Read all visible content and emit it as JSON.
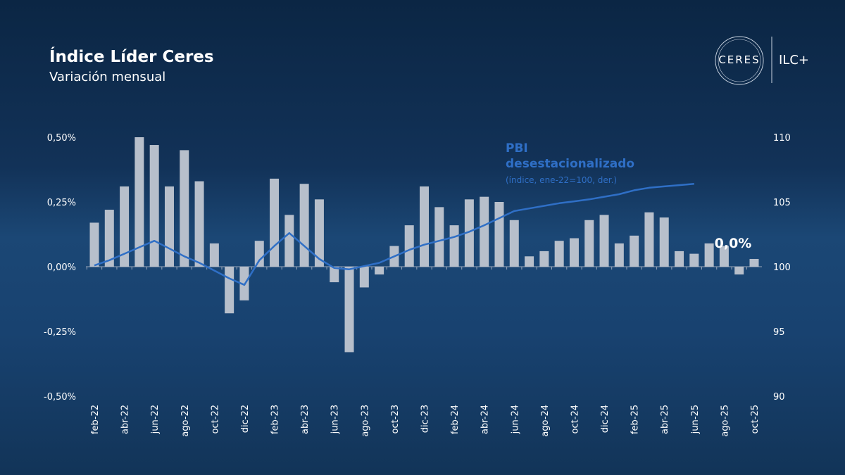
{
  "chart_data": {
    "type": "bar",
    "title": "Índice Líder Ceres",
    "subtitle": "Variación mensual",
    "logo": {
      "brand": "CERES",
      "product": "ILC+"
    },
    "categories": [
      "feb-22",
      null,
      "abr-22",
      null,
      "jun-22",
      null,
      "ago-22",
      null,
      "oct-22",
      null,
      "dic-22",
      null,
      "feb-23",
      null,
      "abr-23",
      null,
      "jun-23",
      null,
      "ago-23",
      null,
      "oct-23",
      null,
      "dic-23",
      null,
      "feb-24",
      null,
      "abr-24",
      null,
      "jun-24",
      null,
      "ago-24",
      null,
      "oct-24",
      null,
      "dic-24",
      null,
      "feb-25",
      null,
      "abr-25",
      null,
      "jun-25",
      null,
      "ago-25",
      null,
      "oct-25"
    ],
    "series": [
      {
        "name": "Índice Líder Ceres",
        "type": "bar",
        "axis": "y",
        "color": "#b7bfcb",
        "values": [
          0.17,
          0.22,
          0.31,
          0.5,
          0.47,
          0.31,
          0.45,
          0.33,
          0.09,
          -0.18,
          -0.13,
          0.1,
          0.34,
          0.2,
          0.32,
          0.26,
          -0.06,
          -0.33,
          -0.08,
          -0.03,
          0.08,
          0.16,
          0.31,
          0.23,
          0.16,
          0.26,
          0.27,
          0.25,
          0.18,
          0.04,
          0.06,
          0.1,
          0.11,
          0.18,
          0.2,
          0.09,
          0.12,
          0.21,
          0.19,
          0.06,
          0.05,
          0.09,
          0.08,
          -0.03,
          0.03
        ],
        "value_labels": [
          null,
          null,
          null,
          null,
          null,
          null,
          null,
          null,
          null,
          null,
          null,
          null,
          null,
          null,
          null,
          null,
          null,
          null,
          null,
          null,
          null,
          null,
          null,
          null,
          null,
          null,
          null,
          null,
          null,
          null,
          null,
          null,
          null,
          null,
          null,
          null,
          null,
          null,
          null,
          null,
          null,
          null,
          null,
          null,
          "0,0%"
        ]
      },
      {
        "name": "PBI desestacionalizado",
        "type": "line",
        "axis": "y2",
        "color": "#2f6fc6",
        "note": "(índice, ene-22=100, der.)",
        "values": [
          100.1,
          100.5,
          101.0,
          101.5,
          102.0,
          101.4,
          100.8,
          100.3,
          99.7,
          99.1,
          98.6,
          100.5,
          101.6,
          102.6,
          101.6,
          100.6,
          99.9,
          99.8,
          100.05,
          100.3,
          100.8,
          101.3,
          101.7,
          102.0,
          102.3,
          102.7,
          103.2,
          103.75,
          104.3,
          104.5,
          104.7,
          104.9,
          105.05,
          105.2,
          105.4,
          105.6,
          105.9,
          106.1,
          106.2,
          106.3,
          106.4,
          null,
          null,
          null,
          null
        ]
      }
    ],
    "ylim": [
      -0.5,
      0.5
    ],
    "yticks": [
      {
        "value": -0.5,
        "label": "-0,50%"
      },
      {
        "value": -0.25,
        "label": "-0,25%"
      },
      {
        "value": 0,
        "label": "0,00%"
      },
      {
        "value": 0.25,
        "label": "0,25%"
      },
      {
        "value": 0.5,
        "label": "0,50%"
      }
    ],
    "y2lim": [
      90,
      110
    ],
    "y2ticks": [
      90,
      95,
      100,
      105,
      110
    ],
    "grid": false
  }
}
